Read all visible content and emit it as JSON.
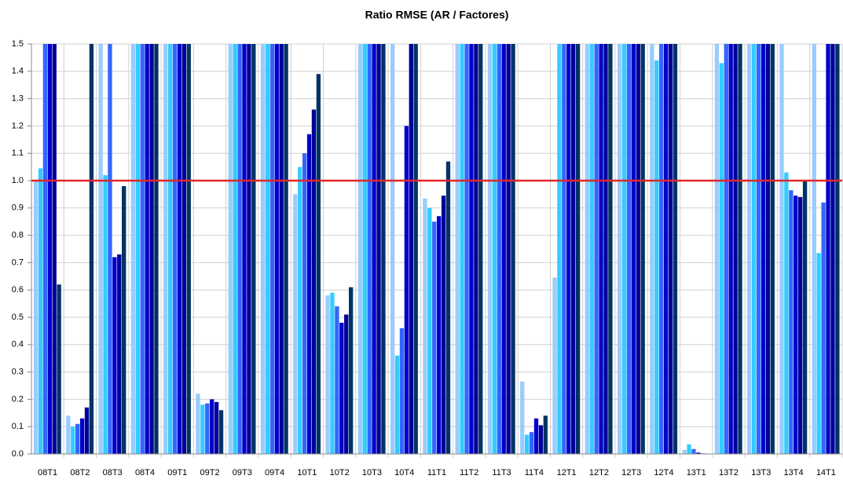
{
  "chart_data": {
    "type": "bar",
    "title": "Ratio RMSE  (AR / Factores)",
    "categories": [
      "08T1",
      "08T2",
      "08T3",
      "08T4",
      "09T1",
      "09T2",
      "09T3",
      "09T4",
      "10T1",
      "10T2",
      "10T3",
      "10T4",
      "11T1",
      "11T2",
      "11T3",
      "11T4",
      "12T1",
      "12T2",
      "12T3",
      "12T4",
      "13T1",
      "13T2",
      "13T3",
      "13T4",
      "14T1"
    ],
    "series": [
      {
        "color": "#99ccff",
        "values": [
          1.0,
          0.14,
          1.5,
          1.5,
          1.5,
          0.22,
          1.5,
          1.5,
          0.95,
          0.58,
          1.5,
          1.5,
          0.935,
          1.5,
          1.5,
          0.265,
          0.645,
          1.5,
          1.5,
          1.5,
          0.015,
          1.5,
          1.5,
          1.5,
          1.5
        ]
      },
      {
        "color": "#33ccff",
        "values": [
          1.045,
          0.1,
          1.02,
          1.5,
          1.5,
          0.18,
          1.5,
          1.5,
          1.05,
          0.59,
          1.5,
          0.36,
          0.9,
          1.5,
          1.5,
          0.07,
          1.5,
          1.5,
          1.5,
          1.44,
          0.035,
          1.43,
          1.5,
          1.03,
          0.735
        ]
      },
      {
        "color": "#3366ff",
        "values": [
          1.5,
          0.11,
          1.5,
          1.5,
          1.5,
          0.185,
          1.5,
          1.5,
          1.1,
          0.54,
          1.5,
          0.46,
          0.85,
          1.5,
          1.5,
          0.08,
          1.5,
          1.5,
          1.5,
          1.5,
          0.018,
          1.5,
          1.5,
          0.965,
          0.92
        ]
      },
      {
        "color": "#0000cc",
        "values": [
          1.5,
          0.13,
          0.72,
          1.5,
          1.5,
          0.2,
          1.5,
          1.5,
          1.17,
          0.48,
          1.5,
          1.2,
          0.87,
          1.5,
          1.5,
          0.13,
          1.5,
          1.5,
          1.5,
          1.5,
          0.005,
          1.5,
          1.5,
          0.945,
          1.5
        ]
      },
      {
        "color": "#000099",
        "values": [
          1.5,
          0.17,
          0.73,
          1.5,
          1.5,
          0.19,
          1.5,
          1.5,
          1.26,
          0.51,
          1.5,
          1.5,
          0.945,
          1.5,
          1.5,
          0.105,
          1.5,
          1.5,
          1.5,
          1.5,
          0.002,
          1.5,
          1.5,
          0.94,
          1.5
        ]
      },
      {
        "color": "#003366",
        "values": [
          0.62,
          1.5,
          0.98,
          1.5,
          1.5,
          0.16,
          1.5,
          1.5,
          1.39,
          0.61,
          1.5,
          1.5,
          1.07,
          1.5,
          1.5,
          0.14,
          1.5,
          1.5,
          1.5,
          1.5,
          0.001,
          1.5,
          1.5,
          1.0,
          1.5
        ]
      }
    ],
    "ylim": [
      0,
      1.5
    ],
    "yticks": [
      {
        "value": 0,
        "label": "0.0"
      },
      0.1,
      0.2,
      0.3,
      0.4,
      0.5,
      0.6,
      0.7,
      0.8,
      0.9,
      {
        "value": 1,
        "label": "1.0"
      },
      1.1,
      1.2,
      1.3,
      1.4,
      1.5
    ],
    "grid": true,
    "reference_line": {
      "value": 1,
      "color": "#e3262a"
    }
  }
}
